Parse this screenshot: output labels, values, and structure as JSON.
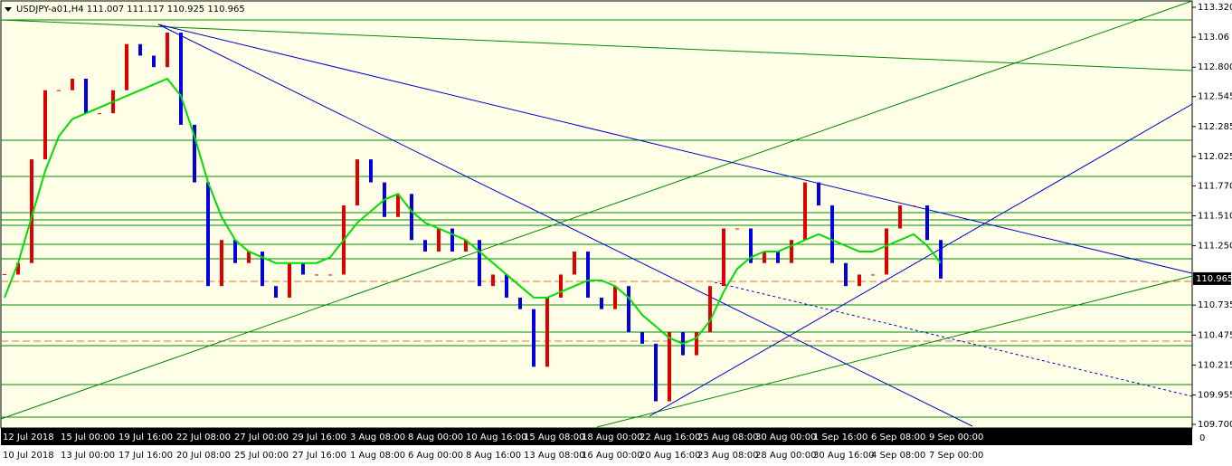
{
  "chart_data": {
    "type": "candlestick",
    "title": "USDJPY-a01,H4  111.007 111.117 110.925 110.965",
    "closes": [
      111.0,
      111.1,
      112.0,
      112.6,
      112.6,
      112.7,
      112.4,
      112.4,
      112.6,
      113.0,
      112.9,
      112.8,
      113.1,
      112.3,
      111.8,
      110.9,
      111.3,
      111.1,
      111.2,
      110.9,
      110.8,
      111.1,
      111.0,
      111.0,
      111.0,
      111.6,
      112.0,
      111.8,
      111.5,
      111.7,
      111.3,
      111.2,
      111.4,
      111.2,
      111.3,
      110.9,
      111.0,
      110.8,
      110.7,
      110.2,
      110.8,
      111.0,
      111.2,
      110.8,
      110.7,
      110.9,
      110.5,
      110.4,
      109.9,
      110.5,
      110.3,
      110.5,
      110.9,
      111.4,
      111.4,
      111.1,
      111.2,
      111.1,
      111.3,
      111.8,
      111.6,
      111.1,
      110.9,
      111.0,
      111.0,
      111.4,
      111.6,
      111.6,
      111.3,
      110.965
    ],
    "up_color": "#e00000",
    "down_color": "#0000e0",
    "ma_values": [
      110.8,
      111.1,
      111.5,
      111.9,
      112.2,
      112.35,
      112.4,
      112.45,
      112.5,
      112.55,
      112.6,
      112.65,
      112.7,
      112.55,
      112.2,
      111.8,
      111.5,
      111.3,
      111.2,
      111.15,
      111.1,
      111.1,
      111.1,
      111.1,
      111.15,
      111.3,
      111.45,
      111.55,
      111.65,
      111.7,
      111.55,
      111.45,
      111.4,
      111.35,
      111.3,
      111.2,
      111.1,
      111.0,
      110.9,
      110.8,
      110.8,
      110.85,
      110.9,
      110.95,
      110.95,
      110.9,
      110.8,
      110.65,
      110.55,
      110.45,
      110.4,
      110.45,
      110.6,
      110.85,
      111.05,
      111.15,
      111.2,
      111.2,
      111.25,
      111.3,
      111.35,
      111.3,
      111.25,
      111.2,
      111.2,
      111.25,
      111.3,
      111.35,
      111.25,
      111.1
    ],
    "ma_color": "#00dd00",
    "ylim": [
      109.7,
      113.32
    ],
    "yticks": [
      {
        "value": 113.32,
        "label": "113.320"
      },
      113.06,
      {
        "value": 112.8,
        "label": "112.800"
      },
      112.545,
      112.285,
      112.025,
      {
        "value": 111.77,
        "label": "111.770"
      },
      {
        "value": 111.51,
        "label": "111.510"
      },
      {
        "value": 111.25,
        "label": "111.250"
      },
      110.735,
      110.475,
      110.215,
      109.955,
      {
        "value": 109.7,
        "label": "109.700"
      }
    ],
    "current_price": {
      "value": 110.965,
      "label": "110.965"
    },
    "x_labels_top": [
      "12 Jul 2018",
      "15 Jul 00:00",
      "19 Jul 16:00",
      "22 Jul 08:00",
      "27 Jul 00:00",
      "29 Jul 16:00",
      "3 Aug 08:00",
      "8 Aug 00:00",
      "10 Aug 16:00",
      "15 Aug 08:00",
      "18 Aug 00:00",
      "22 Aug 16:00",
      "25 Aug 08:00",
      "30 Aug 00:00",
      "1 Sep 16:00",
      "6 Sep 08:00",
      "9 Sep 00:00"
    ],
    "x_labels_bottom": [
      "10 Jul 2018",
      "13 Jul 00:00",
      "17 Jul 16:00",
      "20 Jul 08:00",
      "25 Jul 00:00",
      "27 Jul 16:00",
      "1 Aug 08:00",
      "6 Aug 00:00",
      "8 Aug 16:00",
      "13 Aug 08:00",
      "16 Aug 00:00",
      "20 Aug 16:00",
      "23 Aug 08:00",
      "28 Aug 00:00",
      "30 Aug 16:00",
      "4 Sep 08:00",
      "7 Sep 00:00"
    ],
    "sub_axis_label": "0"
  }
}
